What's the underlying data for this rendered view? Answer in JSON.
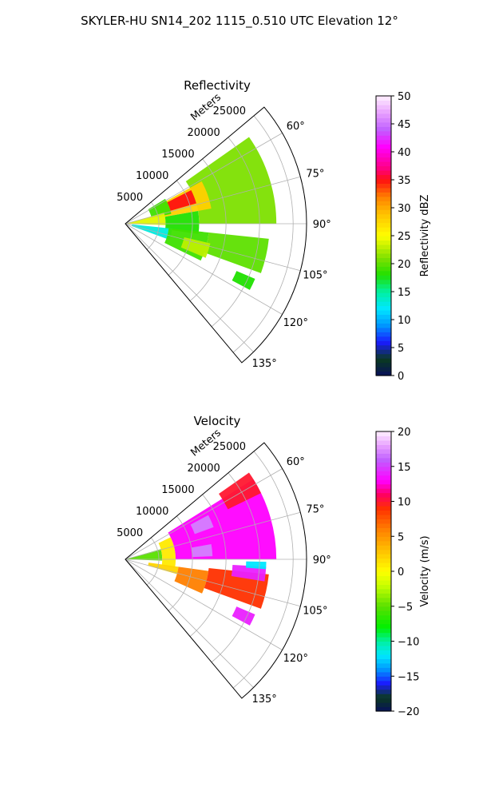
{
  "figure": {
    "suptitle": "SKYLER-HU  SN14_202  1115_0.510 UTC Elevation 12°"
  },
  "chart_data": [
    {
      "type": "heatmap",
      "projection": "polar-sector",
      "title": "Reflectivity",
      "range_axis_label": "Meters",
      "range_ticks": [
        5000,
        10000,
        15000,
        20000,
        25000
      ],
      "range_tick_labels": [
        "5000",
        "10000",
        "15000",
        "20000",
        "25000"
      ],
      "range_max": 27000,
      "azimuth_range": [
        50,
        140
      ],
      "azimuth_ticks": [
        60,
        75,
        90,
        105,
        120,
        135
      ],
      "azimuth_tick_labels": [
        "60°",
        "75°",
        "90°",
        "105°",
        "120°",
        "135°"
      ],
      "grid": true,
      "colorbar": {
        "label": "Reflectivity dBZ",
        "vmin": 0,
        "vmax": 50,
        "ticks": [
          0,
          5,
          10,
          15,
          20,
          25,
          30,
          35,
          40,
          45,
          50
        ],
        "tick_labels": [
          "0",
          "5",
          "10",
          "15",
          "20",
          "25",
          "30",
          "35",
          "40",
          "45",
          "50"
        ],
        "color_stops": [
          [
            0,
            "#08105a"
          ],
          [
            3,
            "#0a3a20"
          ],
          [
            6,
            "#1a1aff"
          ],
          [
            9,
            "#0096ff"
          ],
          [
            12,
            "#00e8ff"
          ],
          [
            15,
            "#00f0a0"
          ],
          [
            18,
            "#20e000"
          ],
          [
            21,
            "#7de000"
          ],
          [
            25,
            "#ffff00"
          ],
          [
            29,
            "#ffc000"
          ],
          [
            32,
            "#ff8000"
          ],
          [
            35,
            "#ff1010"
          ],
          [
            37,
            "#ff0080"
          ],
          [
            41,
            "#ff00ff"
          ],
          [
            44,
            "#c060ff"
          ],
          [
            47,
            "#e8a0ff"
          ],
          [
            50,
            "#fff0ff"
          ]
        ]
      },
      "regions": [
        {
          "az": [
            55,
            90
          ],
          "r": [
            11000,
            22500
          ],
          "value": 21
        },
        {
          "az": [
            61,
            80
          ],
          "r": [
            5000,
            13000
          ],
          "value": 28
        },
        {
          "az": [
            63,
            74
          ],
          "r": [
            7000,
            11000
          ],
          "value": 35
        },
        {
          "az": [
            58,
            78
          ],
          "r": [
            4000,
            7000
          ],
          "value": 19
        },
        {
          "az": [
            74,
            92
          ],
          "r": [
            0,
            6000
          ],
          "value": 24
        },
        {
          "az": [
            80,
            98
          ],
          "r": [
            6000,
            11000
          ],
          "value": 18
        },
        {
          "az": [
            96,
            110
          ],
          "r": [
            1000,
            7000
          ],
          "value": 13
        },
        {
          "az": [
            96,
            116
          ],
          "r": [
            6500,
            12500
          ],
          "value": 19
        },
        {
          "az": [
            96,
            110
          ],
          "r": [
            12500,
            21500
          ],
          "value": 20
        },
        {
          "az": [
            103,
            113
          ],
          "r": [
            9000,
            13000
          ],
          "value": 23
        },
        {
          "az": [
            113,
            118
          ],
          "r": [
            18000,
            21000
          ],
          "value": 18
        }
      ]
    },
    {
      "type": "heatmap",
      "projection": "polar-sector",
      "title": "Velocity",
      "range_axis_label": "Meters",
      "range_ticks": [
        5000,
        10000,
        15000,
        20000,
        25000
      ],
      "range_tick_labels": [
        "5000",
        "10000",
        "15000",
        "20000",
        "25000"
      ],
      "range_max": 27000,
      "azimuth_range": [
        50,
        140
      ],
      "azimuth_ticks": [
        60,
        75,
        90,
        105,
        120,
        135
      ],
      "azimuth_tick_labels": [
        "60°",
        "75°",
        "90°",
        "105°",
        "120°",
        "135°"
      ],
      "grid": true,
      "colorbar": {
        "label": "Velocity (m/s)",
        "vmin": -20,
        "vmax": 20,
        "ticks": [
          -20,
          -15,
          -10,
          -5,
          0,
          5,
          10,
          15,
          20
        ],
        "tick_labels": [
          "−20",
          "−15",
          "−10",
          "−5",
          "0",
          "5",
          "10",
          "15",
          "20"
        ],
        "color_stops": [
          [
            -20,
            "#08105a"
          ],
          [
            -18,
            "#0a3a20"
          ],
          [
            -16,
            "#1a1aff"
          ],
          [
            -14,
            "#0096ff"
          ],
          [
            -12,
            "#00e8ff"
          ],
          [
            -10,
            "#00f0a0"
          ],
          [
            -8,
            "#00f000"
          ],
          [
            -5,
            "#5ae000"
          ],
          [
            -2,
            "#c8ff00"
          ],
          [
            0,
            "#ffff00"
          ],
          [
            3,
            "#ffc000"
          ],
          [
            6,
            "#ff8000"
          ],
          [
            9,
            "#ff3000"
          ],
          [
            11,
            "#ff0060"
          ],
          [
            13,
            "#ff00ff"
          ],
          [
            16,
            "#c060ff"
          ],
          [
            18,
            "#e8a0ff"
          ],
          [
            20,
            "#fff0ff"
          ]
        ]
      },
      "regions": [
        {
          "az": [
            74,
            92
          ],
          "r": [
            0,
            5500
          ],
          "value": -5
        },
        {
          "az": [
            64,
            100
          ],
          "r": [
            5500,
            7500
          ],
          "value": 1
        },
        {
          "az": [
            58,
            90
          ],
          "r": [
            7500,
            22500
          ],
          "value": 13
        },
        {
          "az": [
            55,
            64
          ],
          "r": [
            17000,
            22500
          ],
          "value": 10
        },
        {
          "az": [
            62,
            70
          ],
          "r": [
            11000,
            14000
          ],
          "value": 17
        },
        {
          "az": [
            80,
            88
          ],
          "r": [
            10000,
            13000
          ],
          "value": 17
        },
        {
          "az": [
            98,
            106
          ],
          "r": [
            3500,
            8000
          ],
          "value": 2
        },
        {
          "az": [
            98,
            114
          ],
          "r": [
            8000,
            12500
          ],
          "value": 6
        },
        {
          "az": [
            96,
            110
          ],
          "r": [
            12500,
            21500
          ],
          "value": 9
        },
        {
          "az": [
            93,
            99
          ],
          "r": [
            16000,
            21000
          ],
          "value": 14
        },
        {
          "az": [
            91,
            94
          ],
          "r": [
            18000,
            21000
          ],
          "value": -12
        },
        {
          "az": [
            113,
            118
          ],
          "r": [
            18000,
            21000
          ],
          "value": 14
        }
      ]
    }
  ]
}
